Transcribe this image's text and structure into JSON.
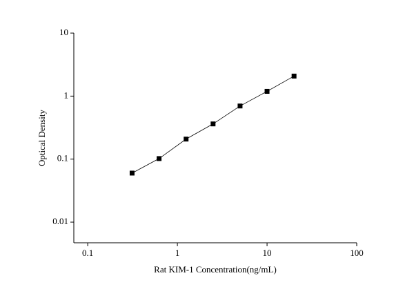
{
  "chart_data": {
    "type": "scatter",
    "x_label": "Rat KIM-1 Concentration(ng/mL)",
    "y_label": "Optical Density",
    "x": [
      0.3125,
      0.625,
      1.25,
      2.5,
      5,
      10,
      20
    ],
    "series": [
      {
        "color": "#000000",
        "values": [
          0.06,
          0.102,
          0.208,
          0.362,
          0.697,
          1.19,
          2.08
        ]
      }
    ],
    "fit_line": true,
    "x_log": true,
    "y_log": true,
    "xlim": [
      0.07,
      100
    ],
    "ylim": [
      0.0047,
      10
    ],
    "xticks": [
      0.1,
      1,
      10,
      100
    ],
    "yticks": [
      0.01,
      0.1,
      1,
      10
    ]
  }
}
